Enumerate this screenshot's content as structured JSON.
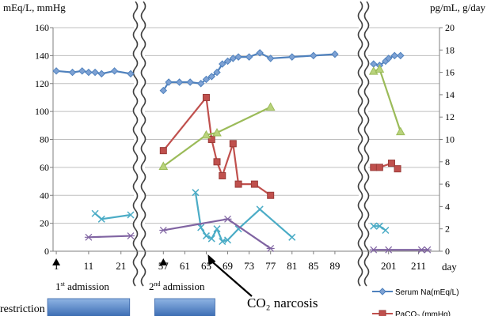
{
  "chart_data": {
    "type": "line",
    "left_axis_label": "mEq/L, mmHg",
    "right_axis_label": "pg/mL, g/day",
    "x_axis_unit": "day",
    "left_ylim": [
      0,
      160
    ],
    "left_yticks": [
      "0",
      "20",
      "40",
      "60",
      "80",
      "100",
      "120",
      "140",
      "160"
    ],
    "right_ylim": [
      0,
      20
    ],
    "right_yticks": [
      "0",
      "2",
      "4",
      "6",
      "8",
      "10",
      "12",
      "14",
      "16",
      "18",
      "20"
    ],
    "grid": true,
    "x_segments": [
      {
        "xmin": 0,
        "xmax": 24,
        "ticks": [
          1,
          11,
          21
        ],
        "tick_labels": [
          "1",
          "11",
          "21"
        ]
      },
      {
        "xmin": 54,
        "xmax": 93,
        "ticks": [
          57,
          61,
          65,
          69,
          73,
          77,
          81,
          85,
          89
        ],
        "tick_labels": [
          "57",
          "61",
          "65",
          "69",
          "73",
          "77",
          "81",
          "85",
          "89"
        ]
      },
      {
        "xmin": 195,
        "xmax": 218,
        "ticks": [
          201,
          211
        ],
        "tick_labels": [
          "201",
          "211"
        ]
      }
    ],
    "series": [
      {
        "name": "Serum Na(mEq/L)",
        "axis": "left",
        "color": "#4f81bd",
        "marker": "diamond",
        "segments": [
          [
            [
              1,
              129
            ],
            [
              6,
              128
            ],
            [
              9,
              129
            ],
            [
              11,
              128
            ],
            [
              13,
              128
            ],
            [
              15,
              127
            ],
            [
              19,
              129
            ],
            [
              24,
              127
            ]
          ],
          [
            [
              57,
              115
            ],
            [
              58,
              121
            ],
            [
              60,
              121
            ],
            [
              62,
              121
            ],
            [
              64,
              120
            ],
            [
              65,
              123
            ],
            [
              66,
              125
            ],
            [
              67,
              128
            ],
            [
              68,
              134
            ],
            [
              69,
              136
            ],
            [
              70,
              138
            ],
            [
              71,
              139
            ],
            [
              73,
              139
            ],
            [
              75,
              142
            ],
            [
              77,
              138
            ],
            [
              81,
              139
            ],
            [
              85,
              140
            ],
            [
              89,
              141
            ]
          ],
          [
            [
              196,
              134
            ],
            [
              198,
              133
            ],
            [
              200,
              136
            ],
            [
              201,
              138
            ],
            [
              203,
              140
            ],
            [
              205,
              140
            ]
          ]
        ]
      },
      {
        "name": "PaCO₂ (mmHg)",
        "axis": "left",
        "color": "#c0504d",
        "marker": "square",
        "segments": [
          [
            [
              57,
              72
            ],
            [
              65,
              110
            ],
            [
              66,
              80
            ],
            [
              67,
              64
            ],
            [
              68,
              54
            ],
            [
              70,
              77
            ],
            [
              71,
              48
            ],
            [
              74,
              48
            ],
            [
              77,
              40
            ]
          ],
          [
            [
              196,
              60
            ],
            [
              198,
              60
            ],
            [
              202,
              63
            ],
            [
              204,
              59
            ]
          ]
        ]
      },
      {
        "name": "",
        "axis": "right",
        "color": "#9bbb59",
        "marker": "triangle",
        "segments": [
          [
            [
              57,
              7.6
            ],
            [
              65,
              10.4
            ],
            [
              67,
              10.6
            ],
            [
              77,
              12.9
            ]
          ],
          [
            [
              196,
              16.1
            ],
            [
              198,
              16.3
            ],
            [
              205,
              10.7
            ]
          ]
        ]
      },
      {
        "name": "",
        "axis": "left",
        "color": "#4bacc6",
        "marker": "x",
        "segments": [
          [
            [
              13,
              27
            ],
            [
              15,
              23
            ],
            [
              24,
              26
            ]
          ],
          [
            [
              63,
              42
            ],
            [
              64,
              17
            ],
            [
              65,
              11
            ],
            [
              66,
              9
            ],
            [
              67,
              16
            ],
            [
              68,
              7
            ],
            [
              69,
              8
            ],
            [
              71,
              16
            ],
            [
              75,
              30
            ],
            [
              81,
              10
            ]
          ],
          [
            [
              196,
              18
            ],
            [
              198,
              18
            ],
            [
              200,
              15
            ]
          ]
        ]
      },
      {
        "name": "",
        "axis": "left",
        "color": "#8064a2",
        "marker": "star",
        "segments": [
          [
            [
              11,
              10
            ],
            [
              24,
              11
            ]
          ],
          [
            [
              57,
              15
            ],
            [
              69,
              23
            ],
            [
              77,
              2
            ]
          ],
          [
            [
              196,
              1
            ],
            [
              201,
              1
            ],
            [
              212,
              1
            ],
            [
              214,
              1
            ]
          ]
        ]
      }
    ],
    "annotations": [
      {
        "key": "admission_1",
        "sup": "st",
        "prefix": "1",
        "suffix": " admission",
        "day": 1
      },
      {
        "key": "admission_2",
        "sup": "nd",
        "prefix": "2",
        "suffix": " admission",
        "day": 57
      },
      {
        "key": "co2_narcosis",
        "text": "CO₂ narcosis",
        "day": 65
      }
    ],
    "restriction": {
      "label": "restriction",
      "bars": [
        [
          1,
          21
        ],
        [
          57,
          65
        ]
      ]
    }
  }
}
